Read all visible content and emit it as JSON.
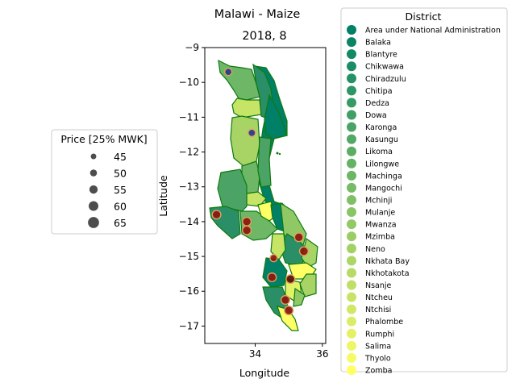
{
  "figure": {
    "suptitle": "Malawi - Maize",
    "subtitle": "2018, 8"
  },
  "chart_data": {
    "type": "scatter",
    "title": "2018, 8",
    "xlabel": "Longitude",
    "ylabel": "Latitude",
    "xlim": [
      32.5,
      36.1
    ],
    "ylim": [
      -17.5,
      -9.0
    ],
    "xticks": [
      {
        "v": 34,
        "label": "34"
      },
      {
        "v": 36,
        "label": "36"
      }
    ],
    "yticks": [
      {
        "v": -9,
        "label": "−9"
      },
      {
        "v": -10,
        "label": "−10"
      },
      {
        "v": -11,
        "label": "−11"
      },
      {
        "v": -12,
        "label": "−12"
      },
      {
        "v": -13,
        "label": "−13"
      },
      {
        "v": -14,
        "label": "−14"
      },
      {
        "v": -15,
        "label": "−15"
      },
      {
        "v": -16,
        "label": "−16"
      },
      {
        "v": -17,
        "label": "−17"
      }
    ],
    "grid": false,
    "points": [
      {
        "lon": 33.2,
        "lat": -9.7,
        "price": 50,
        "color": "#283c8c"
      },
      {
        "lon": 33.9,
        "lat": -11.45,
        "price": 50,
        "color": "#283c8c"
      },
      {
        "lon": 32.85,
        "lat": -13.8,
        "price": 55,
        "color": "#8b1a10"
      },
      {
        "lon": 33.75,
        "lat": -14.0,
        "price": 55,
        "color": "#8b1a10"
      },
      {
        "lon": 33.75,
        "lat": -14.25,
        "price": 55,
        "color": "#8b1a10"
      },
      {
        "lon": 34.55,
        "lat": -15.05,
        "price": 50,
        "color": "#8b1a10"
      },
      {
        "lon": 35.3,
        "lat": -14.45,
        "price": 55,
        "color": "#8b1a10"
      },
      {
        "lon": 35.45,
        "lat": -14.85,
        "price": 55,
        "color": "#8b1a10"
      },
      {
        "lon": 34.5,
        "lat": -15.6,
        "price": 55,
        "color": "#8b1a10"
      },
      {
        "lon": 35.05,
        "lat": -15.65,
        "price": 55,
        "color": "#5a1208"
      },
      {
        "lon": 34.9,
        "lat": -16.25,
        "price": 55,
        "color": "#8b1a10"
      },
      {
        "lon": 35.0,
        "lat": -16.55,
        "price": 55,
        "color": "#8b1a10"
      }
    ],
    "size_legend": {
      "title": "Price [25% MWK]",
      "entries": [
        {
          "label": "45",
          "value": 45
        },
        {
          "label": "50",
          "value": 50
        },
        {
          "label": "55",
          "value": 55
        },
        {
          "label": "60",
          "value": 60
        },
        {
          "label": "65",
          "value": 65
        }
      ]
    },
    "district_legend": {
      "title": "District",
      "colormap": "summer",
      "entries": [
        "Area under National Administration",
        "Balaka",
        "Blantyre",
        "Chikwawa",
        "Chiradzulu",
        "Chitipa",
        "Dedza",
        "Dowa",
        "Karonga",
        "Kasungu",
        "Likoma",
        "Lilongwe",
        "Machinga",
        "Mangochi",
        "Mchinji",
        "Mulanje",
        "Mwanza",
        "Mzimba",
        "Neno",
        "Nkhata Bay",
        "Nkhotakota",
        "Nsanje",
        "Ntcheu",
        "Ntchisi",
        "Phalombe",
        "Rumphi",
        "Salima",
        "Thyolo",
        "Zomba"
      ]
    },
    "map_style": {
      "border_color": "#0f7a0f",
      "lake_color": "#008066",
      "region_colors": [
        "#008066",
        "#2a8f66",
        "#4ca366",
        "#6eb766",
        "#90c866",
        "#a8d466",
        "#c6e466",
        "#e2f266",
        "#ffff66"
      ]
    }
  }
}
